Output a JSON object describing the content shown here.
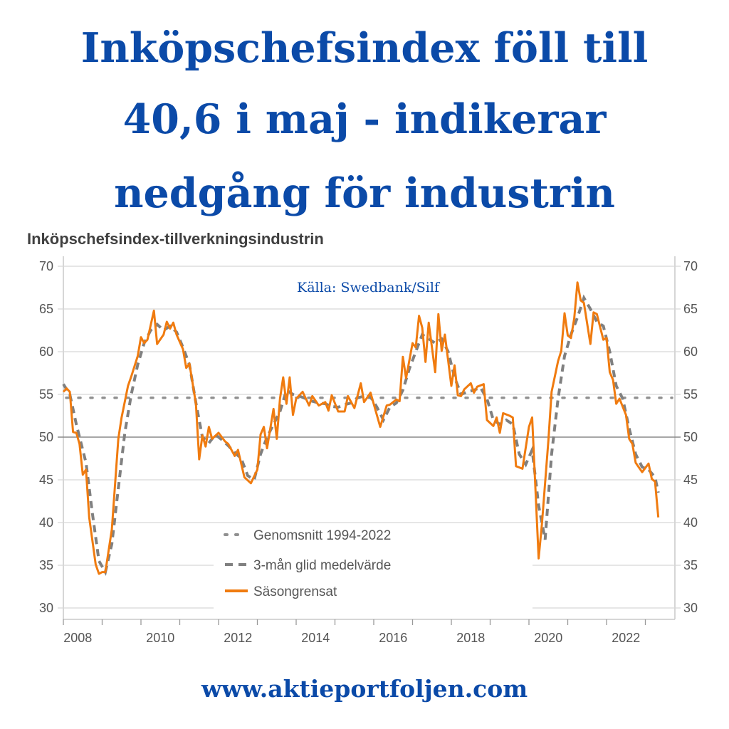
{
  "headline": {
    "line1": "Inköpschefsindex föll till",
    "line2": "40,6 i maj - indikerar",
    "line3": "nedgång för industrin"
  },
  "footer_url": "www.aktieportfoljen.com",
  "colors": {
    "headline": "#0b4aa8",
    "seasonal": "#f07b0f",
    "moving_avg": "#808080",
    "average": "#909090"
  },
  "chart_data": {
    "type": "line",
    "title": "Inköpschefsindex-tillverkningsindustrin",
    "annotation": "Källa: Swedbank/Silf",
    "xlabel": "",
    "ylabel": "",
    "ylim": [
      30,
      70
    ],
    "xlim": [
      "2008-01",
      "2023-06"
    ],
    "y_ticks": [
      "70",
      "65",
      "60",
      "55",
      "50",
      "45",
      "40",
      "35",
      "30"
    ],
    "x_tick_labels": [
      "2008",
      "2010",
      "2012",
      "2014",
      "2016",
      "2018",
      "2020",
      "2022"
    ],
    "grid": true,
    "dual_y_axis": true,
    "reference_line": 50,
    "legend_position": "bottom-center",
    "series": [
      {
        "name": "Genomsnitt 1994-2022",
        "style": "dotted",
        "value": 54.6
      },
      {
        "name": "3-mån glid medelvärde",
        "style": "dashed",
        "points": [
          [
            "2008-01",
            56.2
          ],
          [
            "2008-03",
            55.0
          ],
          [
            "2008-05",
            51.5
          ],
          [
            "2008-08",
            47.0
          ],
          [
            "2008-10",
            41.0
          ],
          [
            "2008-12",
            35.5
          ],
          [
            "2009-02",
            34.2
          ],
          [
            "2009-04",
            37.5
          ],
          [
            "2009-06",
            44.0
          ],
          [
            "2009-08",
            50.5
          ],
          [
            "2009-10",
            55.0
          ],
          [
            "2009-12",
            58.5
          ],
          [
            "2010-02",
            61.0
          ],
          [
            "2010-04",
            62.5
          ],
          [
            "2010-06",
            63.2
          ],
          [
            "2010-08",
            62.5
          ],
          [
            "2010-10",
            63.0
          ],
          [
            "2010-12",
            62.3
          ],
          [
            "2011-02",
            60.5
          ],
          [
            "2011-04",
            58.5
          ],
          [
            "2011-06",
            54.0
          ],
          [
            "2011-08",
            50.0
          ],
          [
            "2011-10",
            49.3
          ],
          [
            "2011-12",
            50.3
          ],
          [
            "2012-02",
            49.7
          ],
          [
            "2012-04",
            49.0
          ],
          [
            "2012-06",
            48.2
          ],
          [
            "2012-08",
            47.5
          ],
          [
            "2012-10",
            45.5
          ],
          [
            "2012-12",
            45.0
          ],
          [
            "2013-02",
            48.0
          ],
          [
            "2013-04",
            50.0
          ],
          [
            "2013-06",
            51.5
          ],
          [
            "2013-08",
            53.0
          ],
          [
            "2013-10",
            55.5
          ],
          [
            "2013-12",
            55.0
          ],
          [
            "2014-02",
            54.8
          ],
          [
            "2014-04",
            54.5
          ],
          [
            "2014-06",
            54.2
          ],
          [
            "2014-08",
            54.0
          ],
          [
            "2014-10",
            53.9
          ],
          [
            "2014-12",
            53.6
          ],
          [
            "2015-02",
            53.5
          ],
          [
            "2015-04",
            53.8
          ],
          [
            "2015-06",
            54.0
          ],
          [
            "2015-08",
            54.6
          ],
          [
            "2015-10",
            54.8
          ],
          [
            "2015-12",
            54.7
          ],
          [
            "2016-02",
            53.5
          ],
          [
            "2016-04",
            52.0
          ],
          [
            "2016-06",
            53.5
          ],
          [
            "2016-08",
            54.0
          ],
          [
            "2016-10",
            55.5
          ],
          [
            "2016-12",
            58.0
          ],
          [
            "2017-02",
            60.0
          ],
          [
            "2017-04",
            62.0
          ],
          [
            "2017-06",
            61.5
          ],
          [
            "2017-08",
            61.0
          ],
          [
            "2017-10",
            61.5
          ],
          [
            "2017-12",
            60.0
          ],
          [
            "2018-02",
            57.0
          ],
          [
            "2018-04",
            55.0
          ],
          [
            "2018-06",
            55.3
          ],
          [
            "2018-08",
            55.5
          ],
          [
            "2018-10",
            55.8
          ],
          [
            "2018-12",
            54.5
          ],
          [
            "2019-02",
            52.0
          ],
          [
            "2019-04",
            51.5
          ],
          [
            "2019-06",
            52.0
          ],
          [
            "2019-08",
            51.5
          ],
          [
            "2019-10",
            48.0
          ],
          [
            "2019-12",
            46.8
          ],
          [
            "2020-02",
            48.5
          ],
          [
            "2020-04",
            42.0
          ],
          [
            "2020-06",
            38.0
          ],
          [
            "2020-08",
            48.0
          ],
          [
            "2020-10",
            54.5
          ],
          [
            "2020-12",
            59.5
          ],
          [
            "2021-02",
            62.0
          ],
          [
            "2021-04",
            64.0
          ],
          [
            "2021-06",
            66.3
          ],
          [
            "2021-08",
            65.0
          ],
          [
            "2021-10",
            63.5
          ],
          [
            "2021-12",
            63.0
          ],
          [
            "2022-02",
            60.0
          ],
          [
            "2022-04",
            56.0
          ],
          [
            "2022-06",
            54.5
          ],
          [
            "2022-08",
            51.0
          ],
          [
            "2022-10",
            48.0
          ],
          [
            "2022-12",
            46.5
          ],
          [
            "2023-02",
            46.2
          ],
          [
            "2023-04",
            45.3
          ],
          [
            "2023-05",
            43.5
          ]
        ]
      },
      {
        "name": "Säsongrensat",
        "style": "solid",
        "points": [
          [
            "2008-01",
            55.3
          ],
          [
            "2008-02",
            55.7
          ],
          [
            "2008-03",
            55.3
          ],
          [
            "2008-04",
            50.6
          ],
          [
            "2008-05",
            50.5
          ],
          [
            "2008-06",
            49.2
          ],
          [
            "2008-07",
            45.6
          ],
          [
            "2008-08",
            46.2
          ],
          [
            "2008-09",
            40.6
          ],
          [
            "2008-11",
            35.1
          ],
          [
            "2008-12",
            34.0
          ],
          [
            "2009-01",
            34.2
          ],
          [
            "2009-02",
            34.2
          ],
          [
            "2009-04",
            39.2
          ],
          [
            "2009-06",
            49.8
          ],
          [
            "2009-07",
            52.3
          ],
          [
            "2009-09",
            56.0
          ],
          [
            "2009-10",
            57.1
          ],
          [
            "2009-12",
            59.5
          ],
          [
            "2010-01",
            61.7
          ],
          [
            "2010-02",
            61.0
          ],
          [
            "2010-03",
            61.4
          ],
          [
            "2010-05",
            64.8
          ],
          [
            "2010-06",
            60.9
          ],
          [
            "2010-08",
            62.0
          ],
          [
            "2010-09",
            63.5
          ],
          [
            "2010-10",
            62.7
          ],
          [
            "2010-11",
            63.4
          ],
          [
            "2010-12",
            62.0
          ],
          [
            "2011-02",
            60.3
          ],
          [
            "2011-03",
            58.1
          ],
          [
            "2011-04",
            58.6
          ],
          [
            "2011-06",
            53.9
          ],
          [
            "2011-07",
            47.4
          ],
          [
            "2011-08",
            50.2
          ],
          [
            "2011-09",
            48.9
          ],
          [
            "2011-10",
            51.2
          ],
          [
            "2011-11",
            49.8
          ],
          [
            "2012-01",
            50.5
          ],
          [
            "2012-03",
            49.5
          ],
          [
            "2012-04",
            49.2
          ],
          [
            "2012-06",
            47.8
          ],
          [
            "2012-07",
            48.5
          ],
          [
            "2012-09",
            45.3
          ],
          [
            "2012-11",
            44.6
          ],
          [
            "2013-01",
            46.2
          ],
          [
            "2013-02",
            50.3
          ],
          [
            "2013-03",
            51.2
          ],
          [
            "2013-04",
            48.7
          ],
          [
            "2013-06",
            53.3
          ],
          [
            "2013-07",
            49.8
          ],
          [
            "2013-08",
            54.5
          ],
          [
            "2013-09",
            57.0
          ],
          [
            "2013-10",
            53.9
          ],
          [
            "2013-11",
            57.0
          ],
          [
            "2013-12",
            52.6
          ],
          [
            "2014-01",
            54.5
          ],
          [
            "2014-03",
            55.3
          ],
          [
            "2014-05",
            53.7
          ],
          [
            "2014-06",
            54.8
          ],
          [
            "2014-08",
            53.7
          ],
          [
            "2014-10",
            54.1
          ],
          [
            "2014-11",
            53.1
          ],
          [
            "2014-12",
            54.9
          ],
          [
            "2015-02",
            53.0
          ],
          [
            "2015-04",
            53.0
          ],
          [
            "2015-05",
            54.8
          ],
          [
            "2015-07",
            53.4
          ],
          [
            "2015-09",
            56.3
          ],
          [
            "2015-10",
            54.1
          ],
          [
            "2015-12",
            55.2
          ],
          [
            "2016-03",
            51.2
          ],
          [
            "2016-05",
            53.7
          ],
          [
            "2016-06",
            53.8
          ],
          [
            "2016-08",
            54.4
          ],
          [
            "2016-09",
            54.2
          ],
          [
            "2016-10",
            59.4
          ],
          [
            "2016-11",
            56.9
          ],
          [
            "2017-01",
            61.0
          ],
          [
            "2017-02",
            60.5
          ],
          [
            "2017-03",
            64.2
          ],
          [
            "2017-04",
            62.8
          ],
          [
            "2017-05",
            58.8
          ],
          [
            "2017-06",
            63.4
          ],
          [
            "2017-08",
            57.6
          ],
          [
            "2017-09",
            64.4
          ],
          [
            "2017-10",
            60.1
          ],
          [
            "2017-11",
            62.0
          ],
          [
            "2018-01",
            56.0
          ],
          [
            "2018-02",
            58.4
          ],
          [
            "2018-03",
            54.9
          ],
          [
            "2018-04",
            54.8
          ],
          [
            "2018-05",
            55.6
          ],
          [
            "2018-07",
            56.3
          ],
          [
            "2018-08",
            55.2
          ],
          [
            "2018-09",
            55.9
          ],
          [
            "2018-11",
            56.2
          ],
          [
            "2018-12",
            52.0
          ],
          [
            "2019-02",
            51.3
          ],
          [
            "2019-03",
            52.3
          ],
          [
            "2019-04",
            50.5
          ],
          [
            "2019-05",
            52.8
          ],
          [
            "2019-07",
            52.5
          ],
          [
            "2019-08",
            52.3
          ],
          [
            "2019-09",
            46.6
          ],
          [
            "2019-11",
            46.3
          ],
          [
            "2020-01",
            51.2
          ],
          [
            "2020-02",
            52.3
          ],
          [
            "2020-04",
            35.8
          ],
          [
            "2020-05",
            39.8
          ],
          [
            "2020-07",
            49.6
          ],
          [
            "2020-08",
            55.3
          ],
          [
            "2020-10",
            58.9
          ],
          [
            "2020-11",
            60.1
          ],
          [
            "2020-12",
            64.5
          ],
          [
            "2021-01",
            61.9
          ],
          [
            "2021-02",
            61.6
          ],
          [
            "2021-03",
            63.9
          ],
          [
            "2021-04",
            68.1
          ],
          [
            "2021-05",
            66.0
          ],
          [
            "2021-06",
            65.7
          ],
          [
            "2021-08",
            60.9
          ],
          [
            "2021-09",
            64.6
          ],
          [
            "2021-10",
            64.4
          ],
          [
            "2021-12",
            61.4
          ],
          [
            "2022-01",
            61.6
          ],
          [
            "2022-02",
            57.6
          ],
          [
            "2022-03",
            56.7
          ],
          [
            "2022-04",
            53.9
          ],
          [
            "2022-05",
            54.5
          ],
          [
            "2022-07",
            52.6
          ],
          [
            "2022-08",
            49.8
          ],
          [
            "2022-09",
            49.2
          ],
          [
            "2022-10",
            47.0
          ],
          [
            "2022-12",
            45.9
          ],
          [
            "2023-02",
            46.9
          ],
          [
            "2023-03",
            45.1
          ],
          [
            "2023-04",
            44.8
          ],
          [
            "2023-05",
            40.6
          ]
        ]
      }
    ]
  }
}
